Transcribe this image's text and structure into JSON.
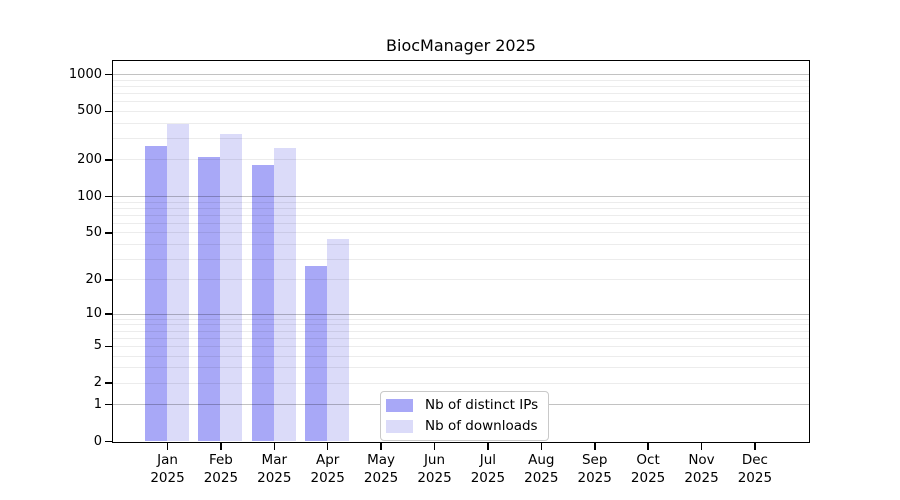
{
  "figure": {
    "background": "#ffffff"
  },
  "chart_data": {
    "type": "bar",
    "title": "BiocManager 2025",
    "categories": [
      "Jan",
      "Feb",
      "Mar",
      "Apr",
      "May",
      "Jun",
      "Jul",
      "Aug",
      "Sep",
      "Oct",
      "Nov",
      "Dec"
    ],
    "year_label": "2025",
    "series": [
      {
        "name": "Nb of distinct IPs",
        "color": "#a8a8f7",
        "values": [
          260,
          210,
          180,
          26,
          null,
          null,
          null,
          null,
          null,
          null,
          null,
          null
        ]
      },
      {
        "name": "Nb of downloads",
        "color": "#dbdbf9",
        "values": [
          390,
          325,
          250,
          44,
          null,
          null,
          null,
          null,
          null,
          null,
          null,
          null
        ]
      }
    ],
    "yticks": [
      0,
      1,
      2,
      5,
      10,
      20,
      50,
      100,
      200,
      500,
      1000
    ],
    "major_gridlines": [
      1,
      10,
      100,
      1000
    ],
    "minor_gridlines": [
      2,
      3,
      4,
      5,
      6,
      7,
      8,
      9,
      20,
      30,
      40,
      50,
      60,
      70,
      80,
      90,
      200,
      300,
      400,
      500,
      600,
      700,
      800,
      900
    ],
    "scale": "log1p",
    "ylim": [
      0,
      1100
    ],
    "grid": true,
    "legend": {
      "position": "lower-center",
      "entries": [
        "Nb of distinct IPs",
        "Nb of downloads"
      ]
    },
    "axis_color": "#000000",
    "major_grid_color": "#c4c4c4",
    "minor_grid_color": "#ececec"
  }
}
